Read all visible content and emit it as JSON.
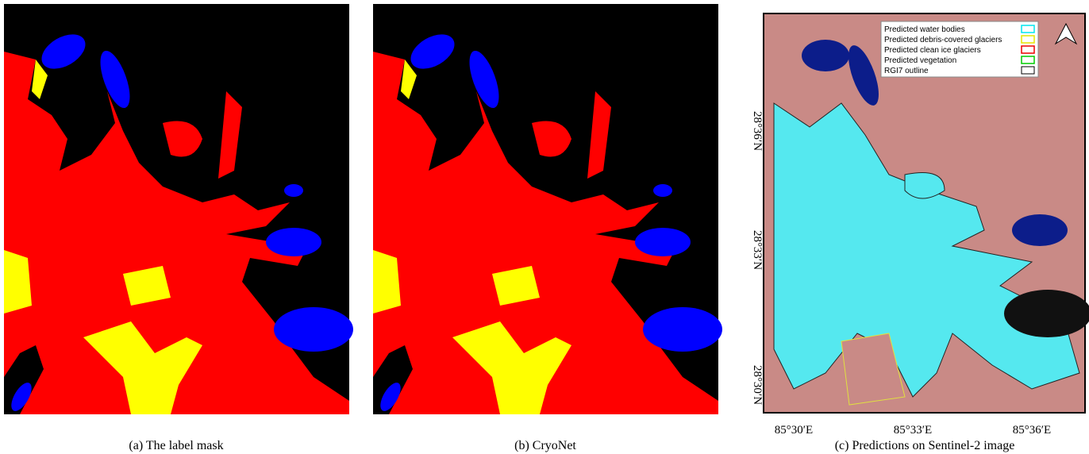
{
  "panels": [
    {
      "caption": "(a) The label mask"
    },
    {
      "caption": "(b) CryoNet"
    },
    {
      "caption": "(c) Predictions on Sentinel-2 image",
      "legend": [
        "Predicted water bodies",
        "Predicted debris-covered glaciers",
        "Predicted clean ice glaciers",
        "Predicted vegetation",
        "RGI7 outline"
      ],
      "x_labels": [
        "85°30′E",
        "85°33′E",
        "85°36′E"
      ],
      "y_labels": [
        "28°36′N",
        "28°33′N",
        "28°30′N"
      ]
    }
  ]
}
